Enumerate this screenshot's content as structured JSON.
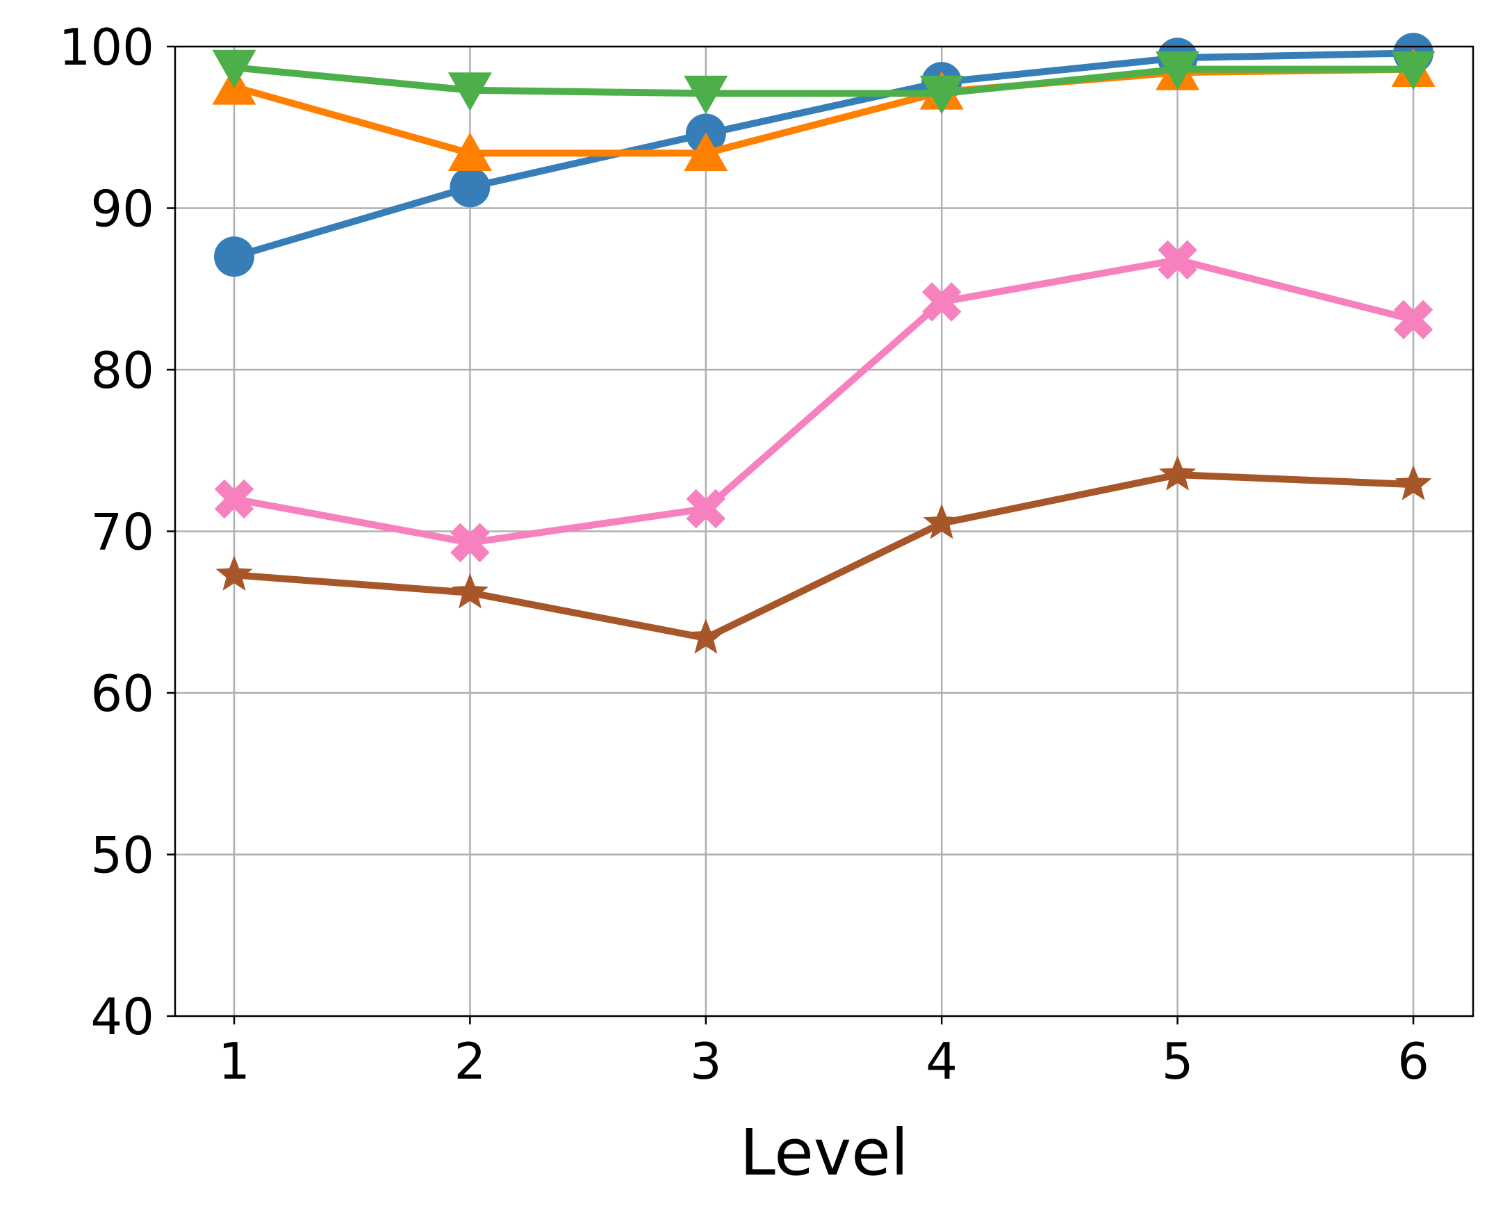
{
  "chart_data": {
    "type": "line",
    "title": "",
    "xlabel": "Level",
    "ylabel": "",
    "x": [
      1,
      2,
      3,
      4,
      5,
      6
    ],
    "xticks": [
      "1",
      "2",
      "3",
      "4",
      "5",
      "6"
    ],
    "ylim": [
      40,
      100
    ],
    "yticks": [
      "40",
      "50",
      "60",
      "70",
      "80",
      "90",
      "100"
    ],
    "grid": true,
    "series": [
      {
        "color": "#377eb8",
        "marker": "circle",
        "values": [
          87.0,
          91.3,
          94.6,
          97.8,
          99.3,
          99.6
        ]
      },
      {
        "color": "#ff7f00",
        "marker": "triangle-up",
        "values": [
          97.5,
          93.4,
          93.4,
          97.2,
          98.4,
          98.6
        ]
      },
      {
        "color": "#4daf4a",
        "marker": "triangle-down",
        "values": [
          98.7,
          97.3,
          97.1,
          97.1,
          98.6,
          98.6
        ]
      },
      {
        "color": "#f781bf",
        "marker": "x-filled",
        "values": [
          72.0,
          69.3,
          71.4,
          84.2,
          86.8,
          83.1
        ]
      },
      {
        "color": "#a65628",
        "marker": "star",
        "values": [
          67.3,
          66.2,
          63.4,
          70.5,
          73.5,
          72.9
        ]
      }
    ]
  }
}
